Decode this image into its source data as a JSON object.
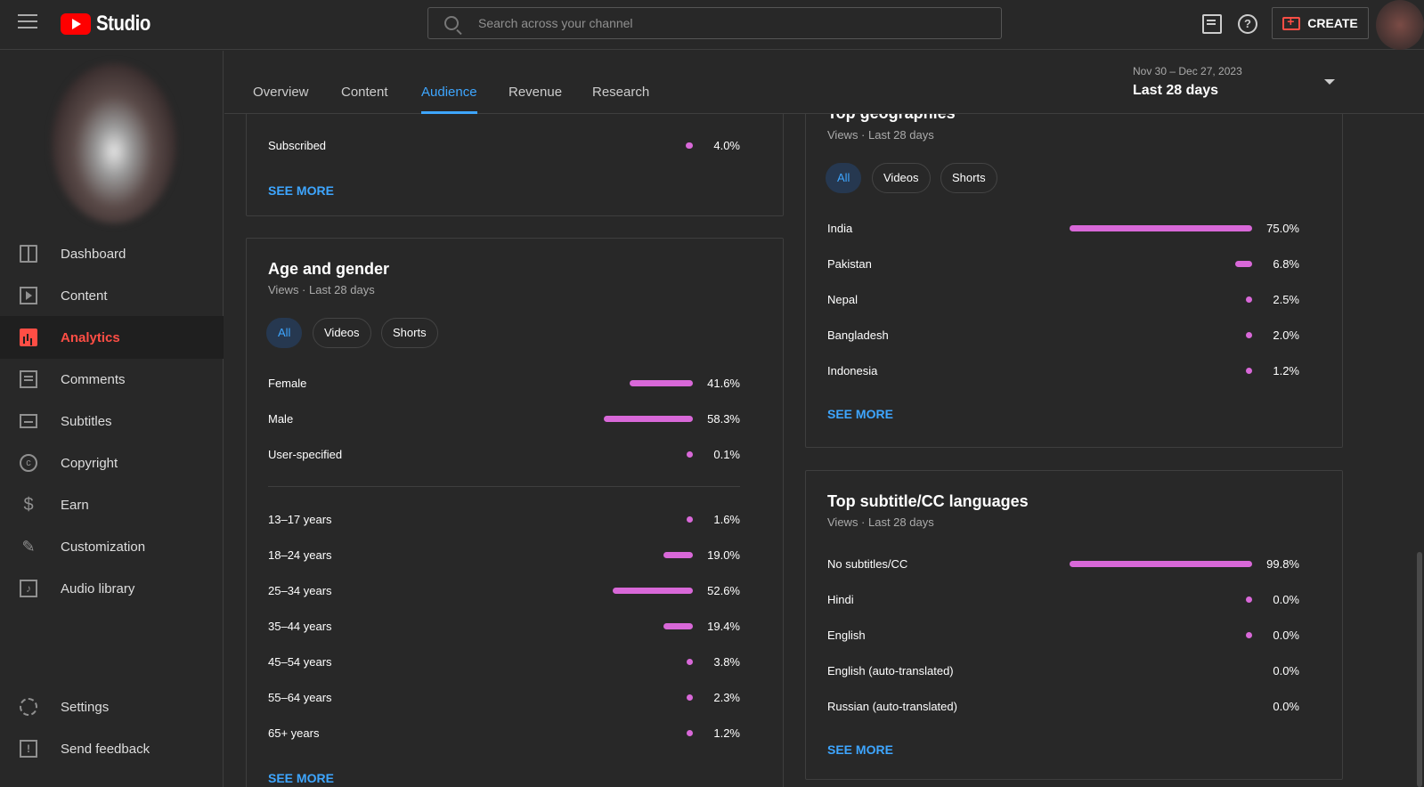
{
  "app": {
    "logo_text": "Studio"
  },
  "search": {
    "placeholder": "Search across your channel"
  },
  "toolbar": {
    "create_label": "CREATE"
  },
  "sidebar": {
    "items": [
      {
        "label": "Dashboard",
        "icon": "dashboard-icon"
      },
      {
        "label": "Content",
        "icon": "content-icon"
      },
      {
        "label": "Analytics",
        "icon": "analytics-icon",
        "active": true
      },
      {
        "label": "Comments",
        "icon": "comments-icon"
      },
      {
        "label": "Subtitles",
        "icon": "subtitles-icon"
      },
      {
        "label": "Copyright",
        "icon": "copyright-icon"
      },
      {
        "label": "Earn",
        "icon": "earn-icon"
      },
      {
        "label": "Customization",
        "icon": "customization-icon"
      },
      {
        "label": "Audio library",
        "icon": "audio-library-icon"
      },
      {
        "label": "Settings",
        "icon": "settings-icon"
      },
      {
        "label": "Send feedback",
        "icon": "feedback-icon"
      }
    ]
  },
  "tabs": [
    {
      "label": "Overview"
    },
    {
      "label": "Content"
    },
    {
      "label": "Audience",
      "active": true
    },
    {
      "label": "Revenue"
    },
    {
      "label": "Research"
    }
  ],
  "date_range": {
    "range": "Nov 30 – Dec 27, 2023",
    "label": "Last 28 days"
  },
  "subscription_card": {
    "rows": [
      {
        "label": "Subscribed",
        "value": "4.0%",
        "pct": 4.0
      }
    ],
    "see_more": "SEE MORE"
  },
  "age_gender_card": {
    "title": "Age and gender",
    "subtitle": "Views · Last 28 days",
    "chips": [
      "All",
      "Videos",
      "Shorts"
    ],
    "gender_rows": [
      {
        "label": "Female",
        "value": "41.6%",
        "pct": 41.6
      },
      {
        "label": "Male",
        "value": "58.3%",
        "pct": 58.3
      },
      {
        "label": "User-specified",
        "value": "0.1%",
        "pct": 0.1
      }
    ],
    "age_rows": [
      {
        "label": "13–17 years",
        "value": "1.6%",
        "pct": 1.6
      },
      {
        "label": "18–24 years",
        "value": "19.0%",
        "pct": 19.0
      },
      {
        "label": "25–34 years",
        "value": "52.6%",
        "pct": 52.6
      },
      {
        "label": "35–44 years",
        "value": "19.4%",
        "pct": 19.4
      },
      {
        "label": "45–54 years",
        "value": "3.8%",
        "pct": 3.8
      },
      {
        "label": "55–64 years",
        "value": "2.3%",
        "pct": 2.3
      },
      {
        "label": "65+ years",
        "value": "1.2%",
        "pct": 1.2
      }
    ],
    "see_more": "SEE MORE"
  },
  "geo_card": {
    "title": "Top geographies",
    "subtitle": "Views · Last 28 days",
    "chips": [
      "All",
      "Videos",
      "Shorts"
    ],
    "rows": [
      {
        "label": "India",
        "value": "75.0%",
        "pct": 75.0
      },
      {
        "label": "Pakistan",
        "value": "6.8%",
        "pct": 6.8
      },
      {
        "label": "Nepal",
        "value": "2.5%",
        "pct": 2.5
      },
      {
        "label": "Bangladesh",
        "value": "2.0%",
        "pct": 2.0
      },
      {
        "label": "Indonesia",
        "value": "1.2%",
        "pct": 1.2
      }
    ],
    "see_more": "SEE MORE"
  },
  "subtitle_card": {
    "title": "Top subtitle/CC languages",
    "subtitle": "Views · Last 28 days",
    "rows": [
      {
        "label": "No subtitles/CC",
        "value": "99.8%",
        "pct": 99.8
      },
      {
        "label": "Hindi",
        "value": "0.0%",
        "pct": 0.05
      },
      {
        "label": "English",
        "value": "0.0%",
        "pct": 0.05
      },
      {
        "label": "English (auto-translated)",
        "value": "0.0%",
        "pct": 0
      },
      {
        "label": "Russian (auto-translated)",
        "value": "0.0%",
        "pct": 0
      }
    ],
    "see_more": "SEE MORE"
  },
  "colors": {
    "accent": "#3ea6ff",
    "bar": "#d868d8",
    "brand": "#ff0000",
    "active_nav": "#ff4e45"
  }
}
